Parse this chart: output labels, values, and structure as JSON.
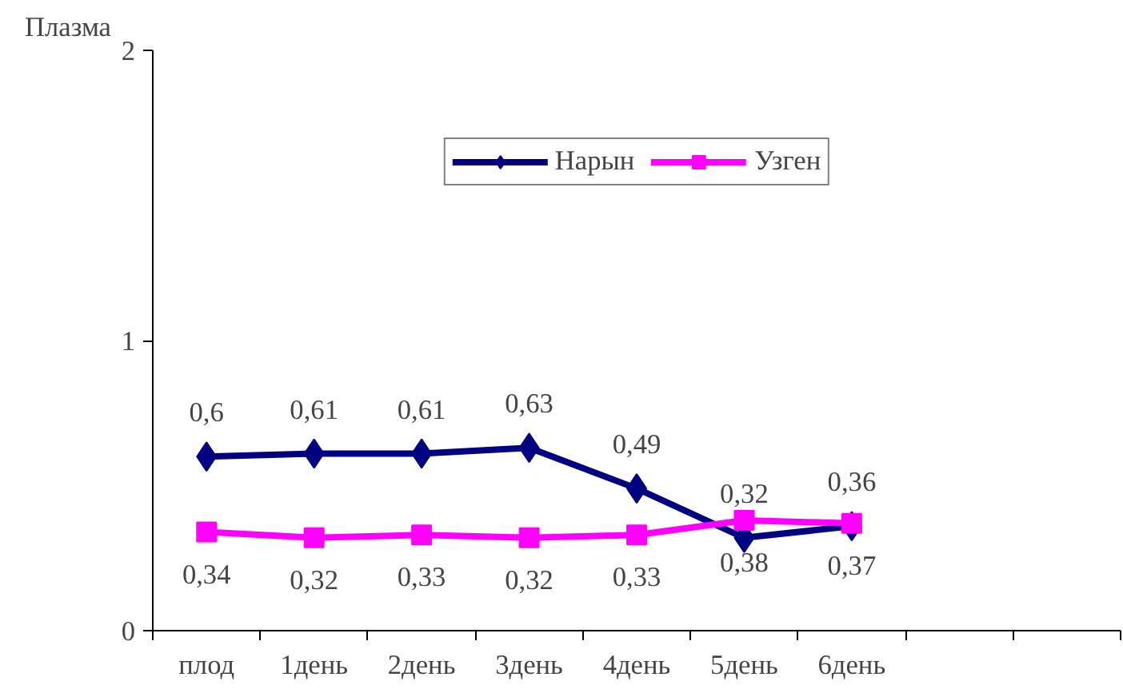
{
  "chart_data": {
    "type": "line",
    "ylabel": "Плазма",
    "categories": [
      "плод",
      "1день",
      "2день",
      "3день",
      "4день",
      "5день",
      "6день",
      null,
      null
    ],
    "series": [
      {
        "name": "Нарын",
        "color": "#000080",
        "marker": "diamond",
        "values": [
          0.6,
          0.61,
          0.61,
          0.63,
          0.49,
          0.32,
          0.36,
          null,
          null
        ],
        "value_labels": [
          "0,6",
          "0,61",
          "0,61",
          "0,63",
          "0,49",
          "0,32",
          "0,36",
          null,
          null
        ]
      },
      {
        "name": "Узген",
        "color": "#ff00ff",
        "marker": "square",
        "values": [
          0.34,
          0.32,
          0.33,
          0.32,
          0.33,
          0.38,
          0.37,
          null,
          null
        ],
        "value_labels": [
          "0,34",
          "0,32",
          "0,33",
          "0,32",
          "0,33",
          "0,38",
          "0,37",
          null,
          null
        ]
      }
    ],
    "ylim": [
      0,
      2
    ],
    "yticks": [
      0,
      1,
      2
    ],
    "grid": false,
    "legend": "top"
  }
}
